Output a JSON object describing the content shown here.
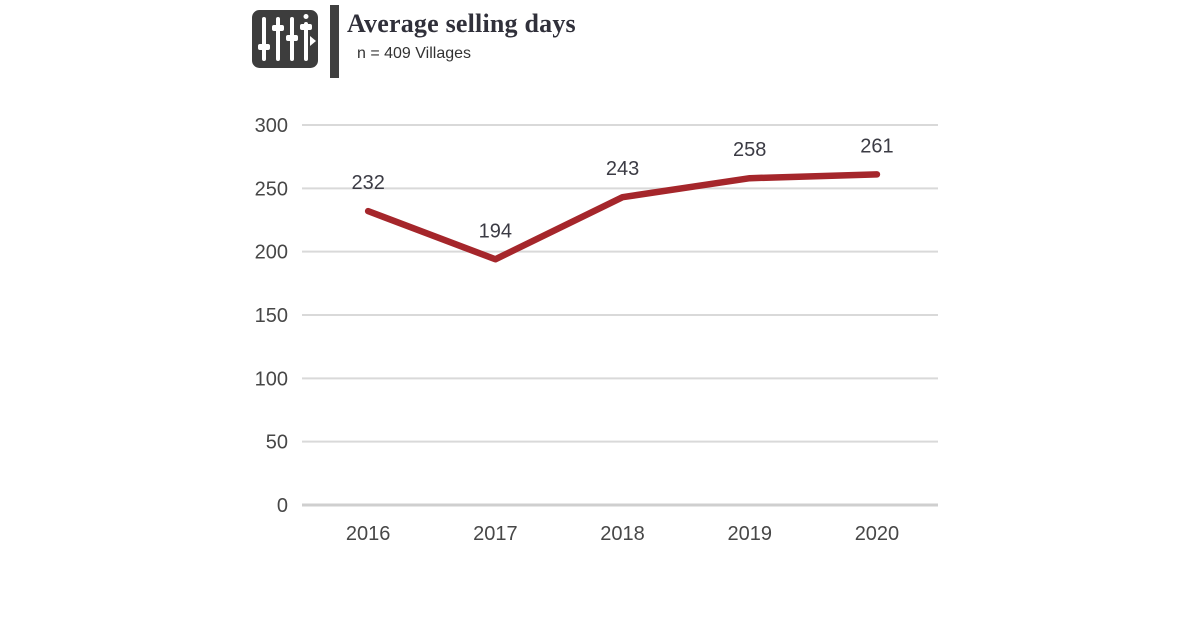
{
  "header": {
    "title": "Average selling days",
    "subtitle": "n = 409 Villages",
    "icon": "equalizer-sliders-icon",
    "accent_bar_color": "#404040",
    "icon_color": "#3d3d3d",
    "title_color": "#30303a"
  },
  "chart_data": {
    "type": "line",
    "title": "Average selling days",
    "subtitle": "n = 409 Villages",
    "categories": [
      "2016",
      "2017",
      "2018",
      "2019",
      "2020"
    ],
    "series": [
      {
        "name": "Average selling days",
        "values": [
          232,
          194,
          243,
          258,
          261
        ]
      }
    ],
    "data_labels": [
      232,
      194,
      243,
      258,
      261
    ],
    "ylim": [
      0,
      300
    ],
    "yticks": [
      0,
      50,
      100,
      150,
      200,
      250,
      300
    ],
    "ytick_interval": 50,
    "grid": "horizontal-only",
    "legend": "none",
    "xlabel": "",
    "ylabel": "",
    "line_color": "#a5262b",
    "gridline_color": "#d9d9d9",
    "baseline_color": "#cfcfcf",
    "tick_label_color": "#474747",
    "data_label_color": "#3b3b44"
  }
}
